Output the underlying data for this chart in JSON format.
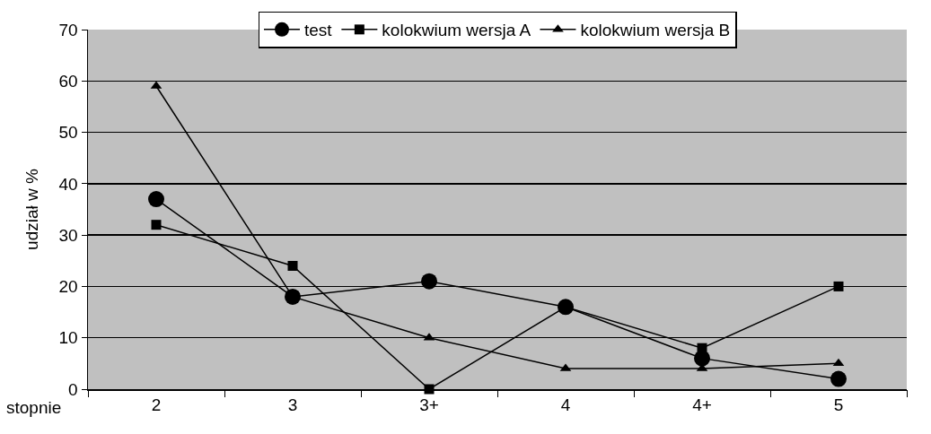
{
  "chart_data": {
    "type": "line",
    "xlabel": "stopnie",
    "ylabel": "udział w %",
    "categories": [
      "2",
      "3",
      "3+",
      "4",
      "4+",
      "5"
    ],
    "series": [
      {
        "name": "test",
        "color": "#000000",
        "marker": "circle",
        "values": [
          37,
          18,
          21,
          16,
          6,
          2
        ]
      },
      {
        "name": "kolokwium wersja A",
        "color": "#000000",
        "marker": "square",
        "values": [
          32,
          24,
          0,
          16,
          8,
          20
        ]
      },
      {
        "name": "kolokwium wersja B",
        "color": "#000000",
        "marker": "triangle",
        "values": [
          59,
          18,
          10,
          4,
          4,
          5
        ]
      }
    ],
    "ylim": [
      0,
      70
    ],
    "yticks": [
      0,
      10,
      20,
      30,
      40,
      50,
      60,
      70
    ],
    "grid": "y",
    "legend": "top",
    "line_style": "solid"
  }
}
